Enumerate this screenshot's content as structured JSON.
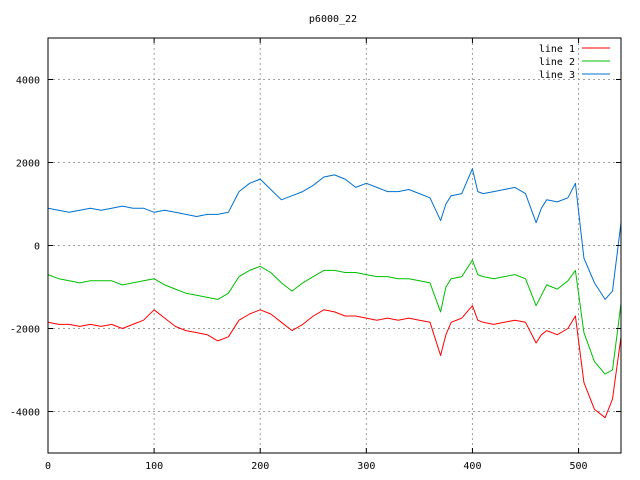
{
  "chart_data": {
    "type": "line",
    "title": "p6000_22",
    "xlabel": "",
    "ylabel": "",
    "xlim": [
      0,
      540
    ],
    "ylim": [
      -5000,
      5000
    ],
    "x_ticks": [
      0,
      100,
      200,
      300,
      400,
      500
    ],
    "y_ticks": [
      -4000,
      -2000,
      0,
      2000,
      4000
    ],
    "x_tick_labels": [
      "0",
      "100",
      "200",
      "300",
      "400",
      "500"
    ],
    "y_tick_labels": [
      "-4000",
      "-2000",
      "0",
      "2000",
      "4000"
    ],
    "grid": true,
    "legend_position": "top-right",
    "x": [
      0,
      10,
      20,
      30,
      40,
      50,
      60,
      70,
      80,
      90,
      100,
      110,
      120,
      130,
      140,
      150,
      160,
      170,
      180,
      190,
      200,
      210,
      220,
      230,
      240,
      250,
      260,
      270,
      280,
      290,
      300,
      310,
      320,
      330,
      340,
      350,
      360,
      370,
      375,
      380,
      390,
      400,
      405,
      410,
      420,
      430,
      440,
      450,
      460,
      465,
      470,
      480,
      490,
      497,
      505,
      515,
      525,
      532,
      540
    ],
    "series": [
      {
        "name": "line 1",
        "color": "#ff0000",
        "values": [
          -1850,
          -1900,
          -1900,
          -1950,
          -1900,
          -1950,
          -1900,
          -2000,
          -1900,
          -1800,
          -1550,
          -1750,
          -1950,
          -2050,
          -2100,
          -2150,
          -2300,
          -2200,
          -1800,
          -1650,
          -1550,
          -1650,
          -1850,
          -2050,
          -1900,
          -1700,
          -1550,
          -1600,
          -1700,
          -1700,
          -1750,
          -1800,
          -1750,
          -1800,
          -1750,
          -1800,
          -1850,
          -2650,
          -2150,
          -1850,
          -1750,
          -1450,
          -1800,
          -1850,
          -1900,
          -1850,
          -1800,
          -1850,
          -2350,
          -2150,
          -2050,
          -2150,
          -2000,
          -1700,
          -3300,
          -3950,
          -4150,
          -3700,
          -2200
        ]
      },
      {
        "name": "line 2",
        "color": "#00c000",
        "values": [
          -700,
          -800,
          -850,
          -900,
          -850,
          -850,
          -850,
          -950,
          -900,
          -850,
          -800,
          -950,
          -1050,
          -1150,
          -1200,
          -1250,
          -1300,
          -1150,
          -750,
          -600,
          -500,
          -650,
          -900,
          -1100,
          -900,
          -750,
          -600,
          -600,
          -650,
          -650,
          -700,
          -750,
          -750,
          -800,
          -800,
          -850,
          -900,
          -1600,
          -1000,
          -800,
          -750,
          -350,
          -700,
          -750,
          -800,
          -750,
          -700,
          -800,
          -1450,
          -1200,
          -950,
          -1050,
          -850,
          -600,
          -2100,
          -2800,
          -3100,
          -3000,
          -1400
        ]
      },
      {
        "name": "line 3",
        "color": "#0070d0",
        "values": [
          900,
          850,
          800,
          850,
          900,
          850,
          900,
          950,
          900,
          900,
          800,
          850,
          800,
          750,
          700,
          750,
          750,
          800,
          1300,
          1500,
          1600,
          1350,
          1100,
          1200,
          1300,
          1450,
          1650,
          1700,
          1600,
          1400,
          1500,
          1400,
          1300,
          1300,
          1350,
          1250,
          1150,
          600,
          1000,
          1200,
          1250,
          1850,
          1300,
          1250,
          1300,
          1350,
          1400,
          1250,
          550,
          900,
          1100,
          1050,
          1150,
          1500,
          -300,
          -900,
          -1300,
          -1100,
          550
        ]
      }
    ]
  }
}
